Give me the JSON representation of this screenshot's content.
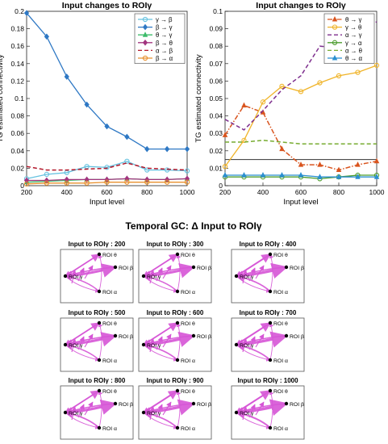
{
  "chart_data": [
    {
      "type": "line",
      "title": "Input changes to ROIγ",
      "xlabel": "Input level",
      "ylabel": "TG estimated connectivity",
      "xlim": [
        200,
        1000
      ],
      "ylim": [
        0,
        0.2
      ],
      "x_ticks": [
        "200",
        "400",
        "600",
        "800",
        "1000"
      ],
      "y_ticks": [
        "0",
        "0.02",
        "0.04",
        "0.06",
        "0.08",
        "0.1",
        "0.12",
        "0.14",
        "0.16",
        "0.18",
        "0.2"
      ],
      "grid": false,
      "legend_position": "top-right",
      "x": [
        200,
        300,
        400,
        500,
        600,
        700,
        800,
        900,
        1000
      ],
      "series": [
        {
          "name": "γ → β",
          "color": "#66c2e0",
          "marker": "circle",
          "dash": "solid",
          "values": [
            0.008,
            0.013,
            0.015,
            0.022,
            0.021,
            0.028,
            0.018,
            0.018,
            0.017
          ]
        },
        {
          "name": "β → γ",
          "color": "#2e78c4",
          "marker": "diamond",
          "dash": "solid",
          "values": [
            0.198,
            0.171,
            0.125,
            0.093,
            0.068,
            0.056,
            0.042,
            0.042,
            0.042
          ]
        },
        {
          "name": "θ → γ",
          "color": "#3dbb6a",
          "marker": "triangle",
          "dash": "solid",
          "values": [
            0.004,
            0.005,
            0.006,
            0.007,
            0.007,
            0.008,
            0.007,
            0.007,
            0.008
          ]
        },
        {
          "name": "β → θ",
          "color": "#a2357f",
          "marker": "diamond",
          "dash": "solid",
          "values": [
            0.006,
            0.006,
            0.007,
            0.007,
            0.007,
            0.008,
            0.007,
            0.007,
            0.008
          ]
        },
        {
          "name": "α → β",
          "color": "#b2182b",
          "marker": "none",
          "dash": "dashed",
          "values": [
            0.022,
            0.018,
            0.018,
            0.019,
            0.02,
            0.026,
            0.02,
            0.019,
            0.018
          ]
        },
        {
          "name": "β → α",
          "color": "#e8902e",
          "marker": "circle",
          "dash": "solid",
          "values": [
            0.002,
            0.003,
            0.003,
            0.003,
            0.004,
            0.004,
            0.004,
            0.004,
            0.004
          ]
        }
      ]
    },
    {
      "type": "line",
      "title": "Input changes to ROIγ",
      "xlabel": "Input level",
      "ylabel": "TG estimated connectivity",
      "xlim": [
        200,
        1000
      ],
      "ylim": [
        0,
        0.1
      ],
      "x_ticks": [
        "200",
        "400",
        "600",
        "800",
        "1000"
      ],
      "y_ticks": [
        "0",
        "0.01",
        "0.02",
        "0.03",
        "0.04",
        "0.05",
        "0.06",
        "0.07",
        "0.08",
        "0.09",
        "0.1"
      ],
      "grid": false,
      "legend_position": "top-right",
      "reference_line": 0.015,
      "x": [
        200,
        300,
        400,
        500,
        600,
        700,
        800,
        900,
        1000
      ],
      "series": [
        {
          "name": "θ → γ",
          "color": "#d9541e",
          "marker": "triangle",
          "dash": "dashdot",
          "values": [
            0.029,
            0.046,
            0.042,
            0.021,
            0.012,
            0.012,
            0.009,
            0.012,
            0.014
          ]
        },
        {
          "name": "γ → θ",
          "color": "#f0b429",
          "marker": "circle",
          "dash": "solid",
          "values": [
            0.011,
            0.026,
            0.048,
            0.057,
            0.054,
            0.059,
            0.063,
            0.065,
            0.069
          ]
        },
        {
          "name": "α → γ",
          "color": "#7e2f8e",
          "marker": "none",
          "dash": "dashed",
          "values": [
            0.038,
            0.032,
            0.043,
            0.055,
            0.063,
            0.08,
            0.079,
            0.089,
            0.094
          ]
        },
        {
          "name": "γ → α",
          "color": "#4d9d2f",
          "marker": "circle",
          "dash": "solid",
          "values": [
            0.005,
            0.005,
            0.005,
            0.005,
            0.005,
            0.004,
            0.005,
            0.006,
            0.006
          ]
        },
        {
          "name": "α → θ",
          "color": "#77ac30",
          "marker": "none",
          "dash": "dashed",
          "values": [
            0.025,
            0.025,
            0.026,
            0.025,
            0.024,
            0.024,
            0.024,
            0.024,
            0.024
          ]
        },
        {
          "name": "θ → α",
          "color": "#2a8fd0",
          "marker": "triangle",
          "dash": "solid",
          "values": [
            0.006,
            0.006,
            0.006,
            0.006,
            0.006,
            0.005,
            0.005,
            0.005,
            0.005
          ]
        }
      ]
    }
  ],
  "network_figure": {
    "title": "Temporal GC: Δ Input to ROIγ",
    "nodes": [
      "ROI θ",
      "ROI β",
      "ROI γ",
      "ROI α"
    ],
    "edge_color": "#d655d6",
    "panels": [
      {
        "label": "Input to ROIγ : 200"
      },
      {
        "label": "Input to ROIγ : 300"
      },
      {
        "label": "Input to ROIγ : 400"
      },
      {
        "label": "Input to ROIγ : 500"
      },
      {
        "label": "Input to ROIγ : 600"
      },
      {
        "label": "Input to ROIγ : 700"
      },
      {
        "label": "Input to ROIγ : 800"
      },
      {
        "label": "Input to ROIγ : 900"
      },
      {
        "label": "Input to ROIγ : 1000"
      }
    ]
  }
}
